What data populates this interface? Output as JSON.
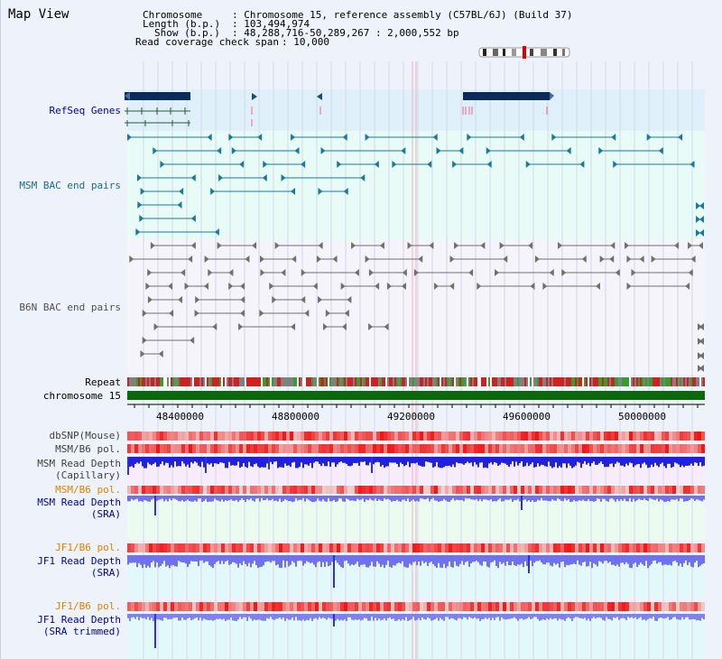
{
  "header": {
    "title": "Map View",
    "chromosome_label": "Chromosome",
    "chromosome_value": ": Chromosome 15, reference assembly (C57BL/6J) (Build 37)",
    "length_label": "Length (b.p.)",
    "length_value": ": 103,494,974",
    "show_label": "Show (b.p.)",
    "show_value": ": 48,288,716-50,289,267 : 2,000,552 bp",
    "read_coverage_label": "Read coverage check span",
    "read_coverage_value": ": 10,000"
  },
  "tracks": {
    "refseq_genes": "RefSeq Genes",
    "msm_bac": "MSM BAC end pairs",
    "b6n_bac": "B6N BAC end pairs",
    "repeat": "Repeat",
    "chromosome": "chromosome 15",
    "dbsnp": "dbSNP(Mouse)",
    "msm_b6_pol_1": "MSM/B6 pol.",
    "msm_read_depth_cap_1": "MSM Read Depth",
    "msm_read_depth_cap_2": "(Capillary)",
    "msm_b6_pol_2": "MSM/B6 pol.",
    "msm_read_depth_sra_1": "MSM Read Depth",
    "msm_read_depth_sra_2": "(SRA)",
    "jf1_b6_pol_1": "JF1/B6 pol.",
    "jf1_read_depth_sra_1": "JF1 Read Depth",
    "jf1_read_depth_sra_2": "(SRA)",
    "jf1_b6_pol_2": "JF1/B6 pol.",
    "jf1_read_depth_trim_1": "JF1 Read Depth",
    "jf1_read_depth_trim_2": "(SRA trimmed)"
  },
  "axis": {
    "ticks": [
      "48400000",
      "48800000",
      "49200000",
      "49600000",
      "50000000"
    ]
  },
  "colors": {
    "gene_dark": "#0a2a5a",
    "msm_track": "#1a7a9a",
    "b6n_track": "#707070",
    "chromosome_bar": "#0a6a0a",
    "depth_blue": "#2020e0",
    "label_navy": "#0000a0",
    "label_orange": "#e08000",
    "label_teal": "#1a6a8a"
  }
}
